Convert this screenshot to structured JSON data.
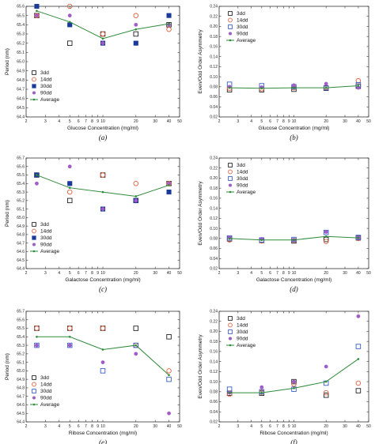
{
  "panels": [
    {
      "id": "a",
      "caption": "(a)",
      "chart_data": {
        "type": "scatter",
        "xlabel": "Glucose Concentration (mg/ml)",
        "ylabel": "Period (nm)",
        "xscale": "log",
        "xlim": [
          2,
          50
        ],
        "ylim": [
          64.4,
          65.6
        ],
        "x_ticks": [
          "2",
          "3",
          "4",
          "5",
          "6",
          "7",
          "8",
          "9",
          "10",
          "20",
          "30",
          "40",
          "50"
        ],
        "y_ticks": [
          "64.4",
          "64.5",
          "64.6",
          "64.7",
          "64.8",
          "64.9",
          "65.0",
          "65.1",
          "65.2",
          "65.3",
          "65.4",
          "65.5",
          "65.6"
        ],
        "legend_position": "left",
        "series": [
          {
            "name": "3dd",
            "style": "open-square",
            "color": "#222222",
            "x": [
              2.5,
              5,
              10,
              20,
              40
            ],
            "y": [
              65.5,
              65.2,
              65.3,
              65.3,
              65.4
            ]
          },
          {
            "name": "14dd",
            "style": "open-circle",
            "color": "#e06040",
            "x": [
              2.5,
              5,
              10,
              20,
              40
            ],
            "y": [
              65.5,
              65.6,
              65.3,
              65.5,
              65.35
            ]
          },
          {
            "name": "30dd",
            "style": "filled-square",
            "color": "#1a3a9a",
            "x": [
              2.5,
              5,
              10,
              20,
              40
            ],
            "y": [
              65.6,
              65.4,
              65.2,
              65.2,
              65.5
            ]
          },
          {
            "name": "90dd",
            "style": "filled-circle",
            "color": "#a05cc8",
            "x": [
              2.5,
              5,
              10,
              20,
              40
            ],
            "y": [
              65.5,
              65.5,
              65.2,
              65.4,
              65.4
            ]
          },
          {
            "name": "Average",
            "style": "line",
            "color": "#2e8b3a",
            "x": [
              2.5,
              5,
              10,
              20,
              40
            ],
            "y": [
              65.55,
              65.43,
              65.25,
              65.35,
              65.41
            ]
          }
        ]
      }
    },
    {
      "id": "b",
      "caption": "(b)",
      "chart_data": {
        "type": "scatter",
        "xlabel": "Glucose Concentration (mg/ml)",
        "ylabel": "Even/Odd Order Asymmetry",
        "xscale": "log",
        "xlim": [
          2,
          50
        ],
        "ylim": [
          0.02,
          0.24
        ],
        "x_ticks": [
          "2",
          "3",
          "4",
          "5",
          "6",
          "7",
          "8",
          "9",
          "10",
          "20",
          "30",
          "40",
          "50"
        ],
        "y_ticks": [
          "0.02",
          "0.04",
          "0.06",
          "0.08",
          "0.10",
          "0.12",
          "0.14",
          "0.16",
          "0.18",
          "0.20",
          "0.22",
          "0.24"
        ],
        "legend_position": "top-left",
        "series": [
          {
            "name": "3dd",
            "style": "open-square",
            "color": "#222222",
            "x": [
              2.5,
              5,
              10,
              20,
              40
            ],
            "y": [
              0.074,
              0.074,
              0.075,
              0.077,
              0.081
            ]
          },
          {
            "name": "14dd",
            "style": "open-circle",
            "color": "#e06040",
            "x": [
              2.5,
              5,
              10,
              20,
              40
            ],
            "y": [
              0.077,
              0.076,
              0.078,
              0.079,
              0.092
            ]
          },
          {
            "name": "30dd",
            "style": "open-square",
            "color": "#3a5ec8",
            "x": [
              2.5,
              5,
              10,
              20,
              40
            ],
            "y": [
              0.085,
              0.082,
              0.08,
              0.078,
              0.084
            ]
          },
          {
            "name": "90dd",
            "style": "filled-circle",
            "color": "#a05cc8",
            "x": [
              2.5,
              5,
              10,
              20,
              40
            ],
            "y": [
              0.08,
              0.079,
              0.083,
              0.086,
              0.078
            ]
          },
          {
            "name": "Average",
            "style": "line",
            "color": "#2e8b3a",
            "x": [
              2.5,
              5,
              10,
              20,
              40
            ],
            "y": [
              0.078,
              0.077,
              0.078,
              0.078,
              0.082
            ]
          }
        ]
      }
    },
    {
      "id": "c",
      "caption": "(c)",
      "chart_data": {
        "type": "scatter",
        "xlabel": "Galactose Concentration (mg/ml)",
        "ylabel": "Period (nm)",
        "xscale": "log",
        "xlim": [
          2,
          50
        ],
        "ylim": [
          64.4,
          65.7
        ],
        "x_ticks": [
          "2",
          "3",
          "4",
          "5",
          "6",
          "7",
          "8",
          "9",
          "10",
          "20",
          "30",
          "40",
          "50"
        ],
        "y_ticks": [
          "64.4",
          "64.5",
          "64.6",
          "64.7",
          "64.8",
          "64.9",
          "65.0",
          "65.1",
          "65.2",
          "65.3",
          "65.4",
          "65.5",
          "65.6",
          "65.7"
        ],
        "legend_position": "left",
        "series": [
          {
            "name": "3dd",
            "style": "open-square",
            "color": "#222222",
            "x": [
              2.5,
              5,
              10,
              20,
              40
            ],
            "y": [
              65.5,
              65.2,
              65.5,
              65.2,
              65.4
            ]
          },
          {
            "name": "14dd",
            "style": "open-circle",
            "color": "#e06040",
            "x": [
              2.5,
              5,
              10,
              20,
              40
            ],
            "y": [
              65.5,
              65.3,
              65.5,
              65.4,
              65.4
            ]
          },
          {
            "name": "30dd",
            "style": "filled-square",
            "color": "#1a3a9a",
            "x": [
              2.5,
              5,
              10,
              20,
              40
            ],
            "y": [
              65.5,
              65.4,
              65.1,
              65.2,
              65.3
            ]
          },
          {
            "name": "90dd",
            "style": "filled-circle",
            "color": "#a05cc8",
            "x": [
              2.5,
              5,
              10,
              20,
              40
            ],
            "y": [
              65.4,
              65.6,
              65.1,
              65.2,
              65.4
            ]
          },
          {
            "name": "Average",
            "style": "line",
            "color": "#2e8b3a",
            "x": [
              2.5,
              5,
              10,
              20,
              40
            ],
            "y": [
              65.5,
              65.35,
              65.3,
              65.25,
              65.38
            ]
          }
        ]
      }
    },
    {
      "id": "d",
      "caption": "(d)",
      "chart_data": {
        "type": "scatter",
        "xlabel": "Galactose Concentration (mg/ml)",
        "ylabel": "Even/Odd Order Asymmetry",
        "xscale": "log",
        "xlim": [
          2,
          50
        ],
        "ylim": [
          0.02,
          0.24
        ],
        "x_ticks": [
          "2",
          "3",
          "4",
          "5",
          "6",
          "7",
          "8",
          "9",
          "10",
          "20",
          "30",
          "40",
          "50"
        ],
        "y_ticks": [
          "0.02",
          "0.04",
          "0.06",
          "0.08",
          "0.10",
          "0.12",
          "0.14",
          "0.16",
          "0.18",
          "0.20",
          "0.22",
          "0.24"
        ],
        "legend_position": "top-left",
        "series": [
          {
            "name": "3dd",
            "style": "open-square",
            "color": "#222222",
            "x": [
              2.5,
              5,
              10,
              20,
              40
            ],
            "y": [
              0.079,
              0.076,
              0.075,
              0.078,
              0.081
            ]
          },
          {
            "name": "14dd",
            "style": "open-circle",
            "color": "#e06040",
            "x": [
              2.5,
              5,
              10,
              20,
              40
            ],
            "y": [
              0.077,
              0.075,
              0.076,
              0.074,
              0.08
            ]
          },
          {
            "name": "30dd",
            "style": "open-square",
            "color": "#3a5ec8",
            "x": [
              2.5,
              5,
              10,
              20,
              40
            ],
            "y": [
              0.081,
              0.077,
              0.078,
              0.092,
              0.082
            ]
          },
          {
            "name": "90dd",
            "style": "filled-circle",
            "color": "#a05cc8",
            "x": [
              2.5,
              5,
              10,
              20,
              40
            ],
            "y": [
              0.082,
              0.079,
              0.077,
              0.093,
              0.081
            ]
          },
          {
            "name": "Average",
            "style": "line",
            "color": "#2e8b3a",
            "x": [
              2.5,
              5,
              10,
              20,
              40
            ],
            "y": [
              0.08,
              0.077,
              0.077,
              0.084,
              0.081
            ]
          }
        ]
      }
    },
    {
      "id": "e",
      "caption": "(e)",
      "chart_data": {
        "type": "scatter",
        "xlabel": "Ribose Concentration (mg/ml)",
        "ylabel": "Period (nm)",
        "xscale": "log",
        "xlim": [
          2,
          50
        ],
        "ylim": [
          64.4,
          65.7
        ],
        "x_ticks": [
          "2",
          "3",
          "4",
          "5",
          "6",
          "7",
          "8",
          "9",
          "10",
          "20",
          "30",
          "40",
          "50"
        ],
        "y_ticks": [
          "64.4",
          "64.5",
          "64.6",
          "64.7",
          "64.8",
          "64.9",
          "65.0",
          "65.1",
          "65.2",
          "65.3",
          "65.4",
          "65.5",
          "65.6",
          "65.7"
        ],
        "legend_position": "left",
        "series": [
          {
            "name": "3dd",
            "style": "open-square",
            "color": "#222222",
            "x": [
              2.5,
              5,
              10,
              20,
              40
            ],
            "y": [
              65.5,
              65.5,
              65.5,
              65.5,
              65.4
            ]
          },
          {
            "name": "14dd",
            "style": "open-circle",
            "color": "#e06040",
            "x": [
              2.5,
              5,
              10,
              20,
              40
            ],
            "y": [
              65.5,
              65.5,
              65.5,
              65.3,
              65.0
            ]
          },
          {
            "name": "30dd",
            "style": "open-square",
            "color": "#3a5ec8",
            "x": [
              2.5,
              5,
              10,
              20,
              40
            ],
            "y": [
              65.3,
              65.3,
              65.0,
              65.3,
              64.9
            ]
          },
          {
            "name": "90dd",
            "style": "filled-circle",
            "color": "#a05cc8",
            "x": [
              2.5,
              5,
              10,
              20,
              40
            ],
            "y": [
              65.3,
              65.3,
              65.1,
              65.2,
              64.5
            ]
          },
          {
            "name": "Average",
            "style": "line",
            "color": "#2e8b3a",
            "x": [
              2.5,
              5,
              10,
              20,
              40
            ],
            "y": [
              65.4,
              65.4,
              65.25,
              65.3,
              64.95
            ]
          }
        ]
      }
    },
    {
      "id": "f",
      "caption": "(f)",
      "chart_data": {
        "type": "scatter",
        "xlabel": "Ribose Concentration (mg/ml)",
        "ylabel": "Even/Odd Order Asymmetry",
        "xscale": "log",
        "xlim": [
          2,
          50
        ],
        "ylim": [
          0.02,
          0.24
        ],
        "x_ticks": [
          "2",
          "3",
          "4",
          "5",
          "6",
          "7",
          "8",
          "9",
          "10",
          "20",
          "30",
          "40",
          "50"
        ],
        "y_ticks": [
          "0.02",
          "0.04",
          "0.06",
          "0.08",
          "0.10",
          "0.12",
          "0.14",
          "0.16",
          "0.18",
          "0.20",
          "0.22",
          "0.24"
        ],
        "legend_position": "top-left",
        "series": [
          {
            "name": "3dd",
            "style": "open-square",
            "color": "#222222",
            "x": [
              2.5,
              5,
              10,
              20,
              40
            ],
            "y": [
              0.077,
              0.077,
              0.1,
              0.073,
              0.082
            ]
          },
          {
            "name": "14dd",
            "style": "open-circle",
            "color": "#e06040",
            "x": [
              2.5,
              5,
              10,
              20,
              40
            ],
            "y": [
              0.075,
              0.079,
              0.095,
              0.078,
              0.097
            ]
          },
          {
            "name": "30dd",
            "style": "open-square",
            "color": "#3a5ec8",
            "x": [
              2.5,
              5,
              10,
              20,
              40
            ],
            "y": [
              0.085,
              0.08,
              0.085,
              0.097,
              0.17
            ]
          },
          {
            "name": "90dd",
            "style": "filled-circle",
            "color": "#a05cc8",
            "x": [
              2.5,
              5,
              10,
              20,
              40
            ],
            "y": [
              0.078,
              0.089,
              0.1,
              0.13,
              0.23
            ]
          },
          {
            "name": "Average",
            "style": "line",
            "color": "#2e8b3a",
            "x": [
              2.5,
              5,
              10,
              20,
              40
            ],
            "y": [
              0.078,
              0.078,
              0.087,
              0.1,
              0.145
            ]
          }
        ]
      }
    }
  ]
}
